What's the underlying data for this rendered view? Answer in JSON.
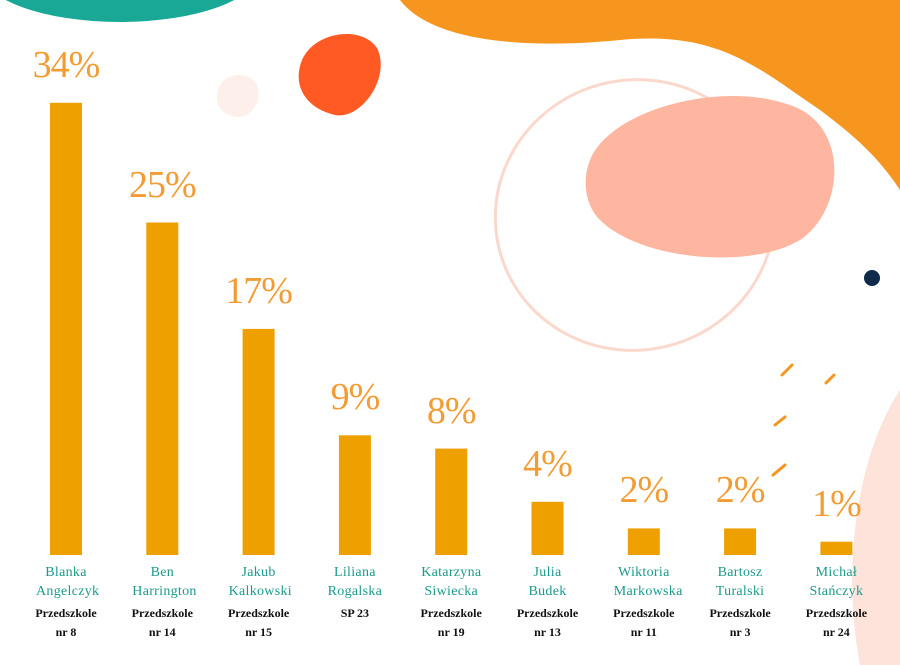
{
  "chart_data": {
    "type": "bar",
    "categories": [
      "Blanka Angelczyk",
      "Ben Harrington",
      "Jakub Kalkowski",
      "Liliana Rogalska",
      "Katarzyna Siwiecka",
      "Julia Budek",
      "Wiktoria Markowska",
      "Bartosz Turalski",
      "Michał Stańczyk"
    ],
    "schools": [
      "Przedszkole nr 8",
      "Przedszkole nr 14",
      "Przedszkole nr 15",
      "SP 23",
      "Przedszkole nr 19",
      "Przedszkole nr 13",
      "Przedszkole nr 11",
      "Przedszkole nr 3",
      "Przedszkole nr 24"
    ],
    "values": [
      34,
      25,
      17,
      9,
      8,
      4,
      2,
      2,
      1
    ],
    "value_labels": [
      "34%",
      "25%",
      "17%",
      "9%",
      "8%",
      "4%",
      "2%",
      "2%",
      "1%"
    ],
    "color": "#eda000"
  }
}
